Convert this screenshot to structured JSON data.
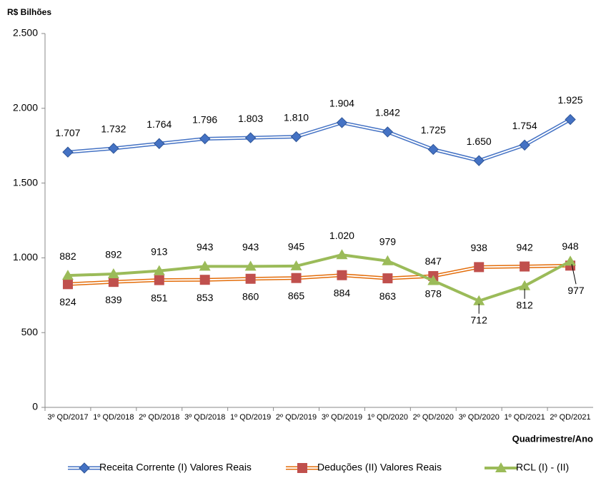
{
  "chart_data": {
    "type": "line",
    "y_unit": "R$ Bilhões",
    "x_label": "Quadrimestre/Ano",
    "categories": [
      "3º QD/2017",
      "1º QD/2018",
      "2º QD/2018",
      "3º QD/2018",
      "1º QD/2019",
      "2º QD/2019",
      "3º QD/2019",
      "1º QD/2020",
      "2º QD/2020",
      "3º QD/2020",
      "1º QD/2021",
      "2º QD/2021"
    ],
    "ylim": [
      0,
      2500
    ],
    "yticks": [
      0,
      500,
      {
        "value": 1000,
        "label": "1.000"
      },
      {
        "value": 1500,
        "label": "1.500"
      },
      {
        "value": 2000,
        "label": "2.000"
      },
      {
        "value": 2500,
        "label": "2.500"
      }
    ],
    "series": [
      {
        "name": "Receita Corrente (I) Valores Reais",
        "color": "#4472c4",
        "marker": "diamond",
        "values": [
          1707,
          1732,
          1764,
          1796,
          1803,
          1810,
          1904,
          1842,
          1725,
          1650,
          1754,
          1925
        ],
        "value_labels": [
          "1.707",
          "1.732",
          "1.764",
          "1.796",
          "1.803",
          "1.810",
          "1.904",
          "1.842",
          "1.725",
          "1.650",
          "1.754",
          "1.925"
        ]
      },
      {
        "name": "Deduções (II) Valores Reais",
        "color": "#c0504d",
        "marker": "square",
        "values": [
          824,
          839,
          851,
          853,
          860,
          865,
          884,
          863,
          878,
          938,
          942,
          948
        ]
      },
      {
        "name": "RCL (I) - (II)",
        "color": "#9bbb59",
        "marker": "triangle",
        "values": [
          882,
          892,
          913,
          943,
          943,
          945,
          1020,
          979,
          847,
          712,
          812,
          977
        ],
        "value_labels": [
          "882",
          "892",
          "913",
          "943",
          "943",
          "945",
          "1.020",
          "979",
          "847",
          "712",
          "812",
          "977"
        ]
      }
    ]
  }
}
